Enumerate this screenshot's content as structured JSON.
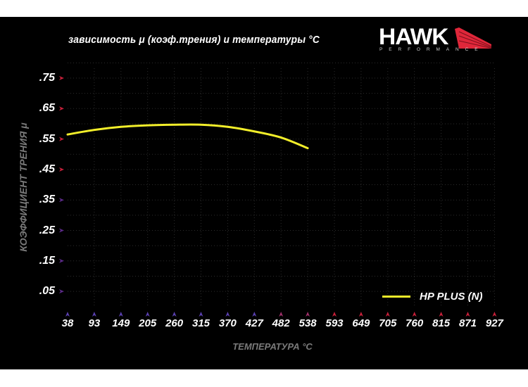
{
  "title": "зависимость μ (коэф.трения) и температуры °C",
  "logo": {
    "brand": "HAWK",
    "sub": "PERFORMANCE",
    "accent": "#e0273a"
  },
  "axes": {
    "ylabel": "КОЭФФИЦИЕНТ ТРЕНИЯ μ",
    "xlabel": "ТЕМПЕРАТУРА °C"
  },
  "legend": {
    "label": "HP PLUS (N)",
    "color": "#f2ee2a"
  },
  "colors": {
    "background": "#000000",
    "axis_red": "#c8203a",
    "axis_blue": "#3b2e91",
    "curve": "#f2ee2a",
    "grid": "#2a2a2a"
  },
  "chart_data": {
    "type": "line",
    "title": "зависимость μ (коэф.трения) и температуры °C",
    "xlabel": "ТЕМПЕРАТУРА °C",
    "ylabel": "КОЭФФИЦИЕНТ ТРЕНИЯ μ",
    "x_ticks": [
      "38",
      "93",
      "149",
      "205",
      "260",
      "315",
      "370",
      "427",
      "482",
      "538",
      "593",
      "649",
      "705",
      "760",
      "815",
      "871",
      "927"
    ],
    "y_ticks": [
      ".75",
      ".65",
      ".55",
      ".45",
      ".35",
      ".25",
      ".15",
      ".05"
    ],
    "ylim": [
      0.0,
      0.8
    ],
    "xlim": [
      38,
      927
    ],
    "grid": true,
    "legend_position": "lower right",
    "series": [
      {
        "name": "HP PLUS (N)",
        "color": "#f2ee2a",
        "x": [
          38,
          93,
          149,
          205,
          260,
          315,
          370,
          427,
          482,
          538
        ],
        "values": [
          0.565,
          0.58,
          0.59,
          0.595,
          0.597,
          0.597,
          0.59,
          0.575,
          0.555,
          0.52
        ]
      }
    ]
  }
}
